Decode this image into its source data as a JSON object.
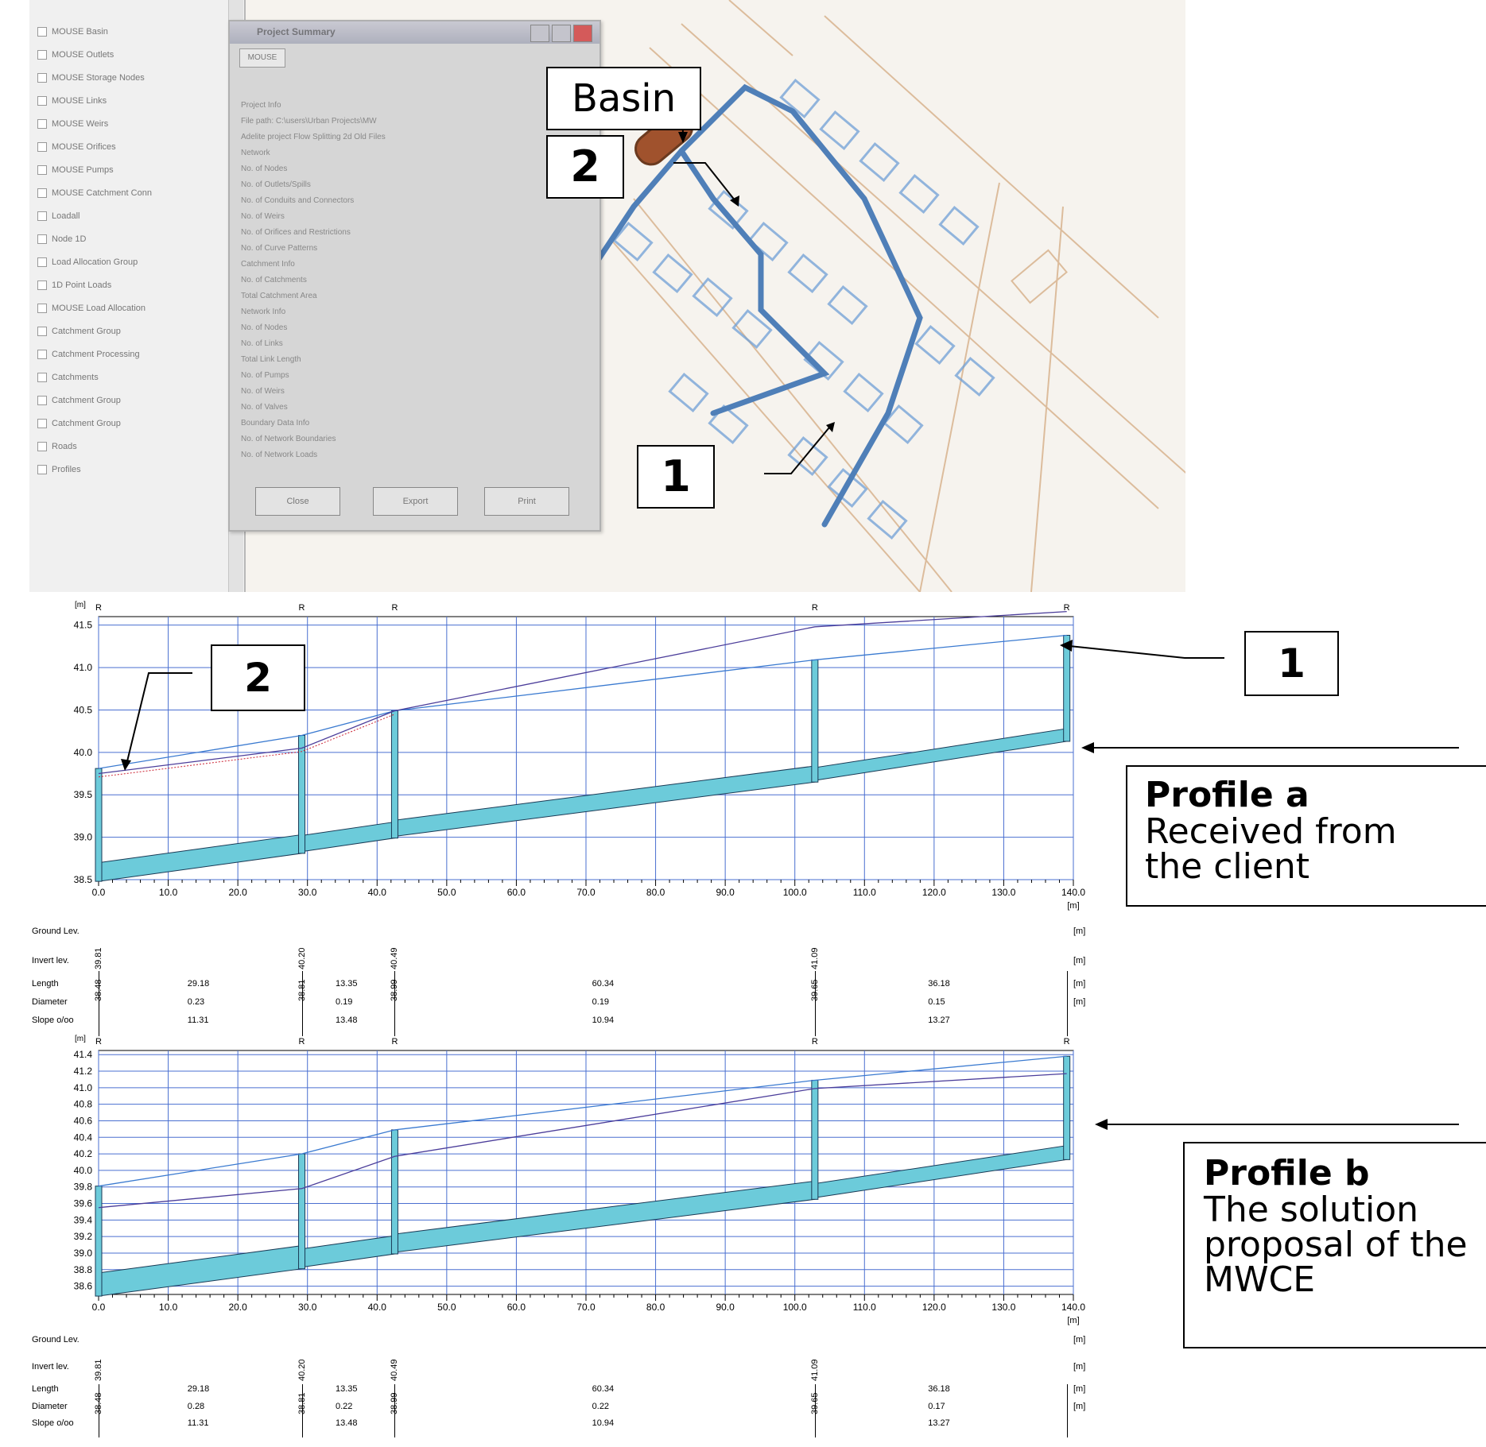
{
  "app": {
    "layer_panel": {
      "items": [
        "MOUSE Basin",
        "MOUSE Outlets",
        "MOUSE Storage Nodes",
        "MOUSE Links",
        "MOUSE Weirs",
        "MOUSE Orifices",
        "MOUSE Pumps",
        "MOUSE Catchment Conn",
        "Loadall",
        "Node 1D",
        "Load Allocation Group",
        "1D Point Loads",
        "MOUSE Load Allocation",
        "Catchment Group",
        "Catchment Processing",
        "Catchments",
        "Catchment Group",
        "Catchment Group",
        "Roads",
        "Profiles"
      ]
    },
    "dialog": {
      "title": "Project Summary",
      "tab": "MOUSE",
      "lines": [
        "Project Info",
        "File path: C:\\users\\Urban Projects\\MW",
        "Adelite project Flow Splitting 2d Old Files",
        "Network",
        "No. of Nodes",
        "No. of Outlets/Spills",
        "No. of Conduits and Connectors",
        "No. of Weirs",
        "No. of Orifices and Restrictions",
        "No. of Curve Patterns",
        "Catchment Info",
        "No. of Catchments",
        "Total Catchment Area",
        "Network Info",
        "No. of Nodes",
        "No. of Links",
        "Total Link Length",
        "No. of Pumps",
        "No. of Weirs",
        "No. of Valves",
        "Boundary Data Info",
        "No. of Network Boundaries",
        "No. of Network Loads"
      ],
      "buttons": [
        "Close",
        "Export",
        "Print"
      ]
    },
    "callouts": {
      "basin": "Basin",
      "top_2": "2",
      "top_1": "1",
      "profile_2": "2",
      "profile_1": "1"
    },
    "profile_a": {
      "title": "Profile a",
      "subtitle": "Received from the client"
    },
    "profile_b": {
      "title": "Profile b",
      "subtitle": "The solution proposal of the MWCE"
    }
  },
  "chart_data": [
    {
      "type": "line",
      "name": "Profile a",
      "x_unit": "[m]",
      "y_unit": "[m]",
      "xlim": [
        0,
        140
      ],
      "ylim": [
        38.5,
        41.6
      ],
      "x_ticks": [
        "0.0",
        "10.0",
        "20.0",
        "30.0",
        "40.0",
        "50.0",
        "60.0",
        "70.0",
        "80.0",
        "90.0",
        "100.0",
        "110.0",
        "120.0",
        "130.0",
        "140.0"
      ],
      "y_ticks": [
        "38.5",
        "39.0",
        "39.5",
        "40.0",
        "40.5",
        "41.0",
        "41.5"
      ],
      "nodes": [
        0.0,
        29.18,
        42.53,
        102.87,
        139.05
      ],
      "node_labels": [
        "R",
        "R",
        "R",
        "R",
        "R"
      ],
      "ground_level": [
        39.81,
        40.2,
        40.49,
        41.09,
        41.38
      ],
      "invert_level": [
        38.48,
        38.81,
        38.99,
        39.65,
        40.13
      ],
      "hgl": [
        39.75,
        40.05,
        40.49,
        41.48,
        41.66
      ],
      "table": {
        "rows": [
          "Ground Lev.",
          "Invert lev.",
          "Length",
          "Diameter",
          "Slope o/oo"
        ],
        "units": [
          "[m]",
          "[m]",
          "[m]",
          "[m]",
          ""
        ],
        "ground": [
          "39.81",
          "40.20",
          "40.49",
          "41.09"
        ],
        "invert": [
          "38.48",
          "38.81",
          "38.99",
          "39.65"
        ],
        "length": [
          "29.18",
          "13.35",
          "60.34",
          "36.18"
        ],
        "diameter": [
          "0.23",
          "0.19",
          "0.19",
          "0.15"
        ],
        "slope": [
          "11.31",
          "13.48",
          "10.94",
          "13.27"
        ]
      }
    },
    {
      "type": "line",
      "name": "Profile b",
      "x_unit": "[m]",
      "y_unit": "[m]",
      "xlim": [
        0,
        140
      ],
      "ylim": [
        38.5,
        41.45
      ],
      "x_ticks": [
        "0.0",
        "10.0",
        "20.0",
        "30.0",
        "40.0",
        "50.0",
        "60.0",
        "70.0",
        "80.0",
        "90.0",
        "100.0",
        "110.0",
        "120.0",
        "130.0",
        "140.0"
      ],
      "y_ticks": [
        "38.6",
        "38.8",
        "39.0",
        "39.2",
        "39.4",
        "39.6",
        "39.8",
        "40.0",
        "40.2",
        "40.4",
        "40.6",
        "40.8",
        "41.0",
        "41.2",
        "41.4"
      ],
      "nodes": [
        0.0,
        29.18,
        42.53,
        102.87,
        139.05
      ],
      "node_labels": [
        "R",
        "R",
        "R",
        "R",
        "R"
      ],
      "ground_level": [
        39.81,
        40.2,
        40.49,
        41.09,
        41.38
      ],
      "invert_level": [
        38.48,
        38.81,
        38.99,
        39.65,
        40.13
      ],
      "hgl": [
        39.55,
        39.78,
        40.17,
        40.99,
        41.17
      ],
      "table": {
        "rows": [
          "Ground Lev.",
          "Invert lev.",
          "Length",
          "Diameter",
          "Slope o/oo"
        ],
        "units": [
          "[m]",
          "[m]",
          "[m]",
          "[m]",
          ""
        ],
        "ground": [
          "39.81",
          "40.20",
          "40.49",
          "41.09"
        ],
        "invert": [
          "38.48",
          "38.81",
          "38.99",
          "39.65"
        ],
        "length": [
          "29.18",
          "13.35",
          "60.34",
          "36.18"
        ],
        "diameter": [
          "0.28",
          "0.22",
          "0.22",
          "0.17"
        ],
        "slope": [
          "11.31",
          "13.48",
          "10.94",
          "13.27"
        ]
      }
    }
  ]
}
